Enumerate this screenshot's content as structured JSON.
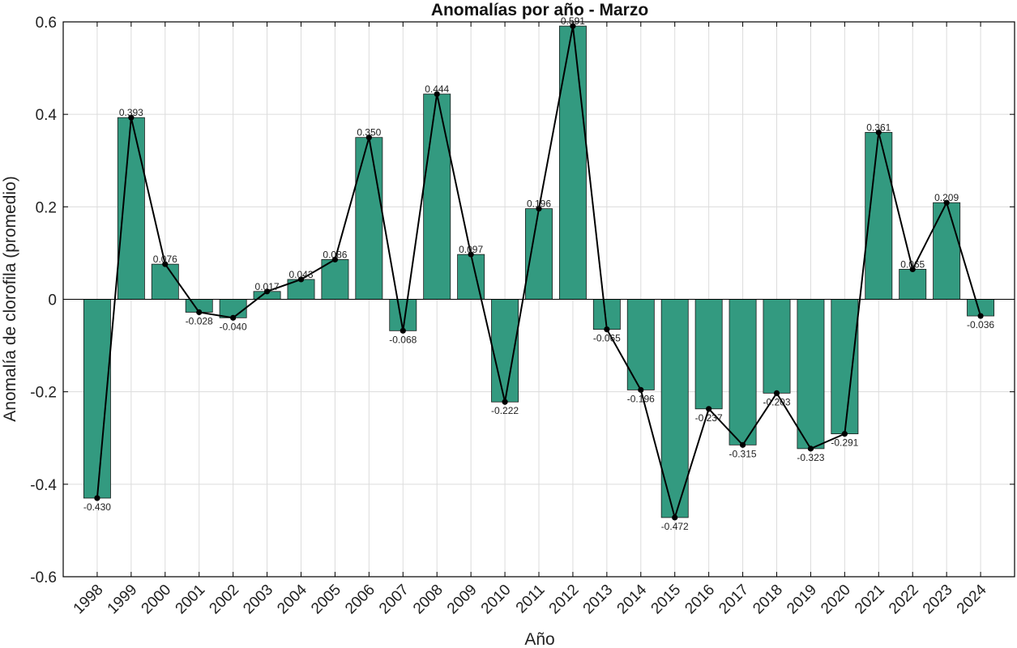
{
  "chart_data": {
    "type": "bar",
    "title": "Anomalías por año - Marzo",
    "xlabel": "Año",
    "ylabel": "Anomalía de clorofila (promedio)",
    "ylim": [
      -0.6,
      0.6
    ],
    "yticks": [
      -0.6,
      -0.4,
      -0.2,
      0,
      0.2,
      0.4,
      0.6
    ],
    "ytick_labels": [
      "-0.6",
      "-0.4",
      "-0.2",
      "0",
      "0.2",
      "0.4",
      "0.6"
    ],
    "grid": true,
    "overlay": "line-with-markers",
    "categories": [
      "1998",
      "1999",
      "2000",
      "2001",
      "2002",
      "2003",
      "2004",
      "2005",
      "2006",
      "2007",
      "2008",
      "2009",
      "2010",
      "2011",
      "2012",
      "2013",
      "2014",
      "2015",
      "2016",
      "2017",
      "2018",
      "2019",
      "2020",
      "2021",
      "2022",
      "2023",
      "2024"
    ],
    "values": [
      -0.43,
      0.393,
      0.076,
      -0.028,
      -0.04,
      0.017,
      0.043,
      0.086,
      0.35,
      -0.068,
      0.444,
      0.097,
      -0.222,
      0.196,
      0.591,
      -0.065,
      -0.196,
      -0.472,
      -0.237,
      -0.315,
      -0.203,
      -0.323,
      -0.291,
      0.361,
      0.065,
      0.209,
      -0.036
    ],
    "data_labels": [
      "-0.430",
      "0.393",
      "0.076",
      "-0.028",
      "-0.040",
      "0.017",
      "0.043",
      "0.086",
      "0.350",
      "-0.068",
      "0.444",
      "0.097",
      "-0.222",
      "0.196",
      "0.591",
      "-0.065",
      "-0.196",
      "-0.472",
      "-0.237",
      "-0.315",
      "-0.203",
      "-0.323",
      "-0.291",
      "0.361",
      "0.065",
      "0.209",
      "-0.036"
    ],
    "colors": {
      "bar": "#339a80",
      "bar_edge": "#1a1a1a",
      "line": "#000000",
      "grid": "#dcdcdc"
    }
  }
}
